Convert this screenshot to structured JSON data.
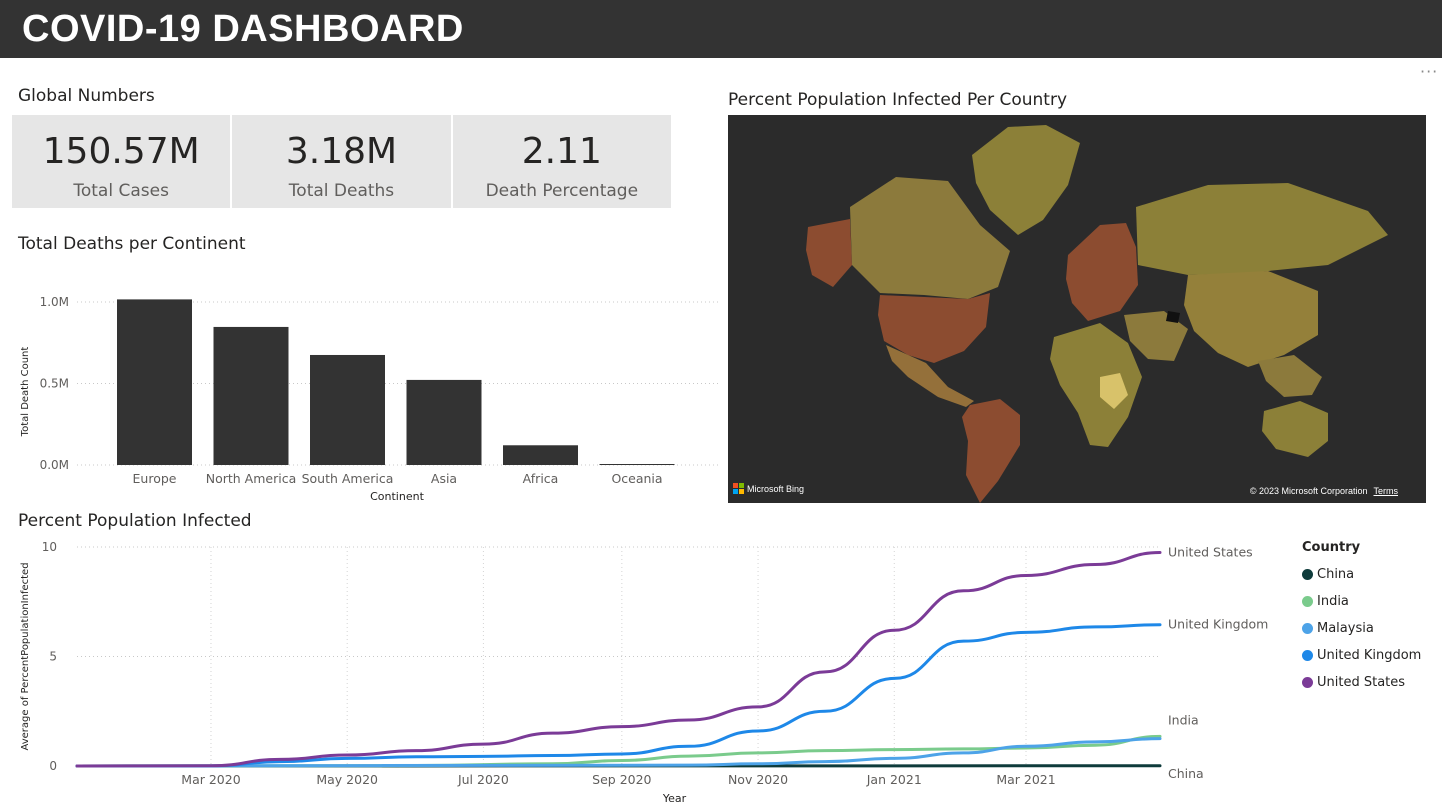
{
  "header": {
    "title": "COVID-19 DASHBOARD"
  },
  "more_options": "···",
  "global": {
    "title": "Global Numbers",
    "cards": [
      {
        "value": "150.57M",
        "label": "Total Cases"
      },
      {
        "value": "3.18M",
        "label": "Total Deaths"
      },
      {
        "value": "2.11",
        "label": "Death Percentage"
      }
    ]
  },
  "map": {
    "title": "Percent Population Infected Per Country",
    "credit_left": "Microsoft Bing",
    "credit_right": "© 2023 Microsoft Corporation",
    "terms": "Terms",
    "colors": {
      "background": "#2b2b2b",
      "low": "#8c8038",
      "mid": "#94703a",
      "high": "#8c4c30",
      "highlight": "#d8c26a"
    }
  },
  "chart_data": [
    {
      "type": "bar",
      "title": "Total Deaths per Continent",
      "xlabel": "Continent",
      "ylabel": "Total Death Count",
      "categories": [
        "Europe",
        "North America",
        "South America",
        "Asia",
        "Africa",
        "Oceania"
      ],
      "values": [
        1016000,
        847000,
        675000,
        522000,
        121000,
        1100
      ],
      "ylim": [
        0,
        1000000
      ],
      "yticks": [
        0,
        500000,
        1000000
      ],
      "ytick_labels": [
        "0.0M",
        "0.5M",
        "1.0M"
      ],
      "grid": true,
      "color": "#333333"
    },
    {
      "type": "line",
      "title": "Percent Population Infected",
      "xlabel": "Year",
      "ylabel": "Average of PercentPopulationInfected",
      "x_start": "2020-01",
      "x_end": "2021-04-30",
      "x_ticks": [
        "Mar 2020",
        "May 2020",
        "Jul 2020",
        "Sep 2020",
        "Nov 2020",
        "Jan 2021",
        "Mar 2021"
      ],
      "x_tick_dates": [
        "2020-03-01",
        "2020-05-01",
        "2020-07-01",
        "2020-09-01",
        "2020-11-01",
        "2021-01-01",
        "2021-03-01"
      ],
      "ylim": [
        0,
        10
      ],
      "yticks": [
        0,
        5,
        10
      ],
      "grid": true,
      "legend": {
        "title": "Country",
        "position": "right"
      },
      "series": [
        {
          "name": "China",
          "color": "#0e3b3b",
          "x": [
            "2020-01-01",
            "2021-04-30"
          ],
          "y": [
            0.0,
            0.01
          ]
        },
        {
          "name": "India",
          "color": "#7acb8c",
          "x": [
            "2020-01-01",
            "2020-06-01",
            "2020-08-01",
            "2020-09-01",
            "2020-10-01",
            "2020-11-01",
            "2020-12-01",
            "2021-01-01",
            "2021-02-01",
            "2021-03-01",
            "2021-04-01",
            "2021-04-30"
          ],
          "y": [
            0.0,
            0.02,
            0.1,
            0.25,
            0.45,
            0.6,
            0.7,
            0.75,
            0.78,
            0.82,
            0.95,
            1.35
          ]
        },
        {
          "name": "Malaysia",
          "color": "#4da3e8",
          "x": [
            "2020-01-01",
            "2020-10-01",
            "2020-11-01",
            "2020-12-01",
            "2021-01-01",
            "2021-02-01",
            "2021-03-01",
            "2021-04-01",
            "2021-04-30"
          ],
          "y": [
            0.0,
            0.04,
            0.1,
            0.2,
            0.35,
            0.6,
            0.9,
            1.1,
            1.25
          ]
        },
        {
          "name": "United Kingdom",
          "color": "#1e88e8",
          "x": [
            "2020-01-01",
            "2020-03-01",
            "2020-04-01",
            "2020-05-01",
            "2020-06-01",
            "2020-07-01",
            "2020-08-01",
            "2020-09-01",
            "2020-10-01",
            "2020-11-01",
            "2020-12-01",
            "2021-01-01",
            "2021-02-01",
            "2021-03-01",
            "2021-04-01",
            "2021-04-30"
          ],
          "y": [
            0.0,
            0.0,
            0.2,
            0.35,
            0.42,
            0.44,
            0.48,
            0.55,
            0.9,
            1.6,
            2.5,
            4.0,
            5.7,
            6.1,
            6.35,
            6.45
          ]
        },
        {
          "name": "United States",
          "color": "#7b3b97",
          "x": [
            "2020-01-01",
            "2020-03-01",
            "2020-04-01",
            "2020-05-01",
            "2020-06-01",
            "2020-07-01",
            "2020-08-01",
            "2020-09-01",
            "2020-10-01",
            "2020-11-01",
            "2020-12-01",
            "2021-01-01",
            "2021-02-01",
            "2021-03-01",
            "2021-04-01",
            "2021-04-30"
          ],
          "y": [
            0.0,
            0.01,
            0.3,
            0.5,
            0.7,
            1.0,
            1.5,
            1.8,
            2.1,
            2.7,
            4.3,
            6.2,
            8.0,
            8.7,
            9.2,
            9.75
          ]
        }
      ]
    }
  ]
}
